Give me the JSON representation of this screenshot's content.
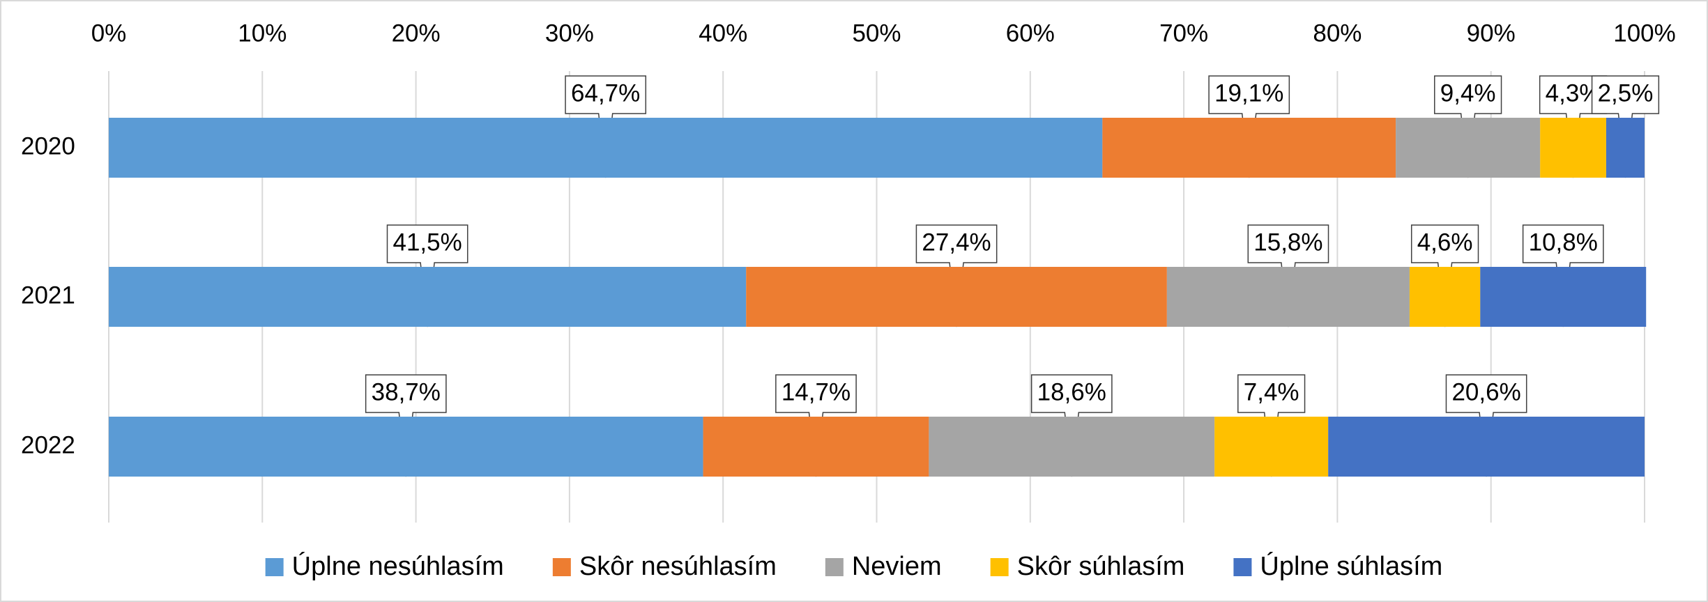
{
  "chart_data": {
    "type": "stacked-barh",
    "categories": [
      "2020",
      "2021",
      "2022"
    ],
    "series": [
      {
        "name": "Úplne nesúhlasím",
        "color": "#5b9bd5",
        "values": [
          64.7,
          41.5,
          38.7
        ],
        "value_labels": [
          "64,7%",
          "41,5%",
          "38,7%"
        ]
      },
      {
        "name": "Skôr nesúhlasím",
        "color": "#ed7d31",
        "values": [
          19.1,
          27.4,
          14.7
        ],
        "value_labels": [
          "19,1%",
          "27,4%",
          "14,7%"
        ]
      },
      {
        "name": "Neviem",
        "color": "#a5a5a5",
        "values": [
          9.4,
          15.8,
          18.6
        ],
        "value_labels": [
          "9,4%",
          "15,8%",
          "18,6%"
        ]
      },
      {
        "name": "Skôr súhlasím",
        "color": "#ffc000",
        "values": [
          4.3,
          4.6,
          7.4
        ],
        "value_labels": [
          "4,3%",
          "4,6%",
          "7,4%"
        ]
      },
      {
        "name": "Úplne súhlasím",
        "color": "#4472c4",
        "values": [
          2.5,
          10.8,
          20.6
        ],
        "value_labels": [
          "2,5%",
          "10,8%",
          "20,6%"
        ]
      }
    ],
    "xlim": [
      0,
      100
    ],
    "xticks": [
      {
        "value": 0,
        "label": "0%"
      },
      {
        "value": 10,
        "label": "10%"
      },
      {
        "value": 20,
        "label": "20%"
      },
      {
        "value": 30,
        "label": "30%"
      },
      {
        "value": 40,
        "label": "40%"
      },
      {
        "value": 50,
        "label": "50%"
      },
      {
        "value": 60,
        "label": "60%"
      },
      {
        "value": 70,
        "label": "70%"
      },
      {
        "value": 80,
        "label": "80%"
      },
      {
        "value": 90,
        "label": "90%"
      },
      {
        "value": 100,
        "label": "100%"
      }
    ],
    "grid": true,
    "legend": "bottom"
  }
}
